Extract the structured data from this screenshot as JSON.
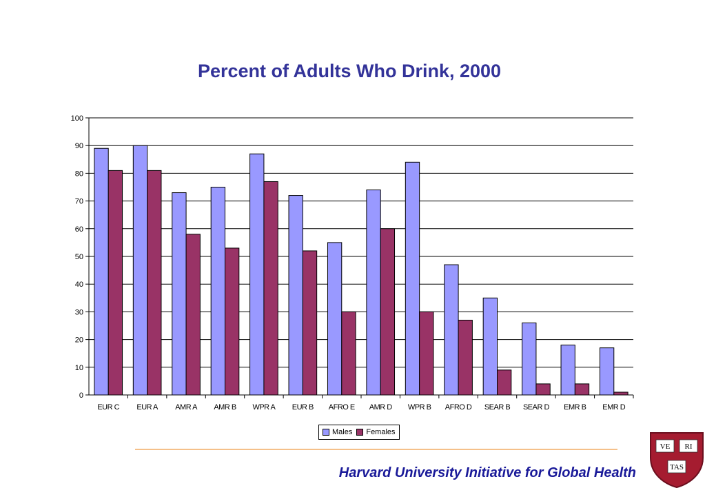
{
  "colors": {
    "title": "#333399",
    "males": "#9999ff",
    "females": "#993366",
    "footer": "#1a1a99",
    "rule": "#f5c08a",
    "shield": "#a51c30"
  },
  "chart_data": {
    "type": "bar",
    "title": "Percent of Adults Who Drink, 2000",
    "xlabel": "",
    "ylabel": "",
    "ylim": [
      0,
      100
    ],
    "yticks": [
      "0",
      "10",
      "20",
      "30",
      "40",
      "50",
      "60",
      "70",
      "80",
      "90",
      "100"
    ],
    "grid": true,
    "legend_position": "bottom",
    "categories": [
      "EUR C",
      "EUR A",
      "AMR A",
      "AMR B",
      "WPR A",
      "EUR B",
      "AFRO E",
      "AMR D",
      "WPR B",
      "AFRO D",
      "SEAR B",
      "SEAR D",
      "EMR B",
      "EMR D"
    ],
    "series": [
      {
        "name": "Males",
        "color": "#9999ff",
        "values": [
          89,
          90,
          73,
          75,
          87,
          72,
          55,
          74,
          84,
          47,
          35,
          26,
          18,
          17
        ]
      },
      {
        "name": "Females",
        "color": "#993366",
        "values": [
          81,
          81,
          58,
          53,
          77,
          52,
          30,
          60,
          30,
          27,
          9,
          4,
          4,
          1
        ]
      }
    ]
  },
  "footer": {
    "text": "Harvard University Initiative for Global Health"
  },
  "logo": {
    "shield_text": [
      "VE",
      "RI",
      "TAS"
    ],
    "icon": "harvard-shield-icon"
  }
}
